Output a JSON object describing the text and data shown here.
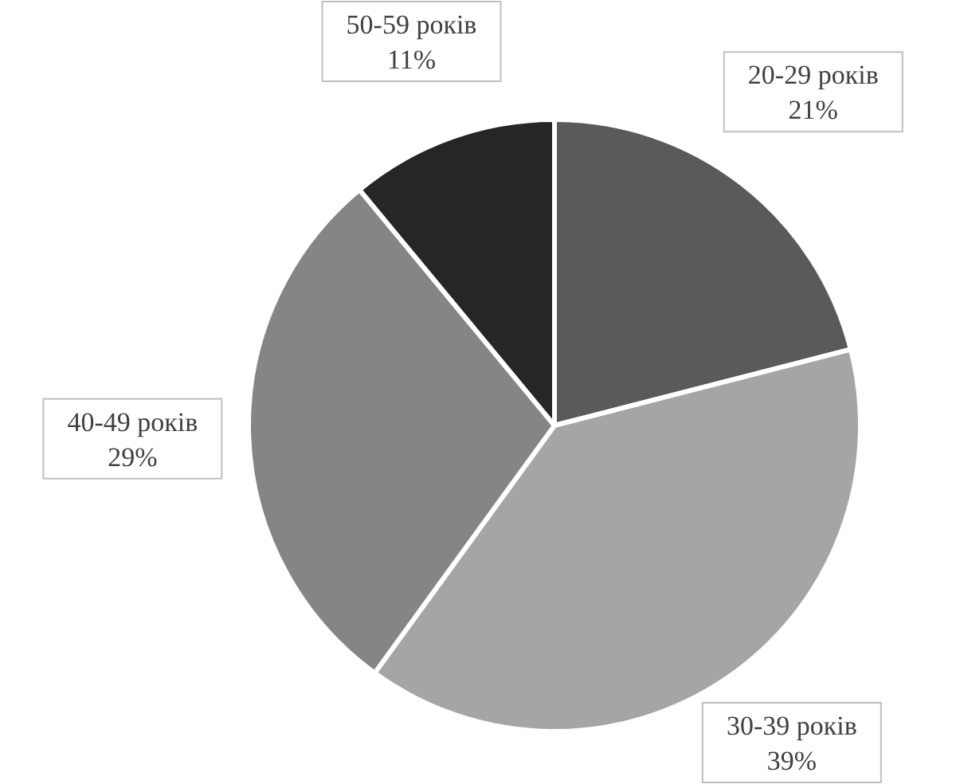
{
  "chart_data": {
    "type": "pie",
    "categories": [
      "20-29 років",
      "30-39 років",
      "40-49 років",
      "50-59 років"
    ],
    "values": [
      21,
      39,
      29,
      11
    ],
    "colors": [
      "#5a5a5a",
      "#a5a5a5",
      "#858585",
      "#262626"
    ],
    "value_labels": [
      "21%",
      "39%",
      "29%",
      "11%"
    ]
  }
}
